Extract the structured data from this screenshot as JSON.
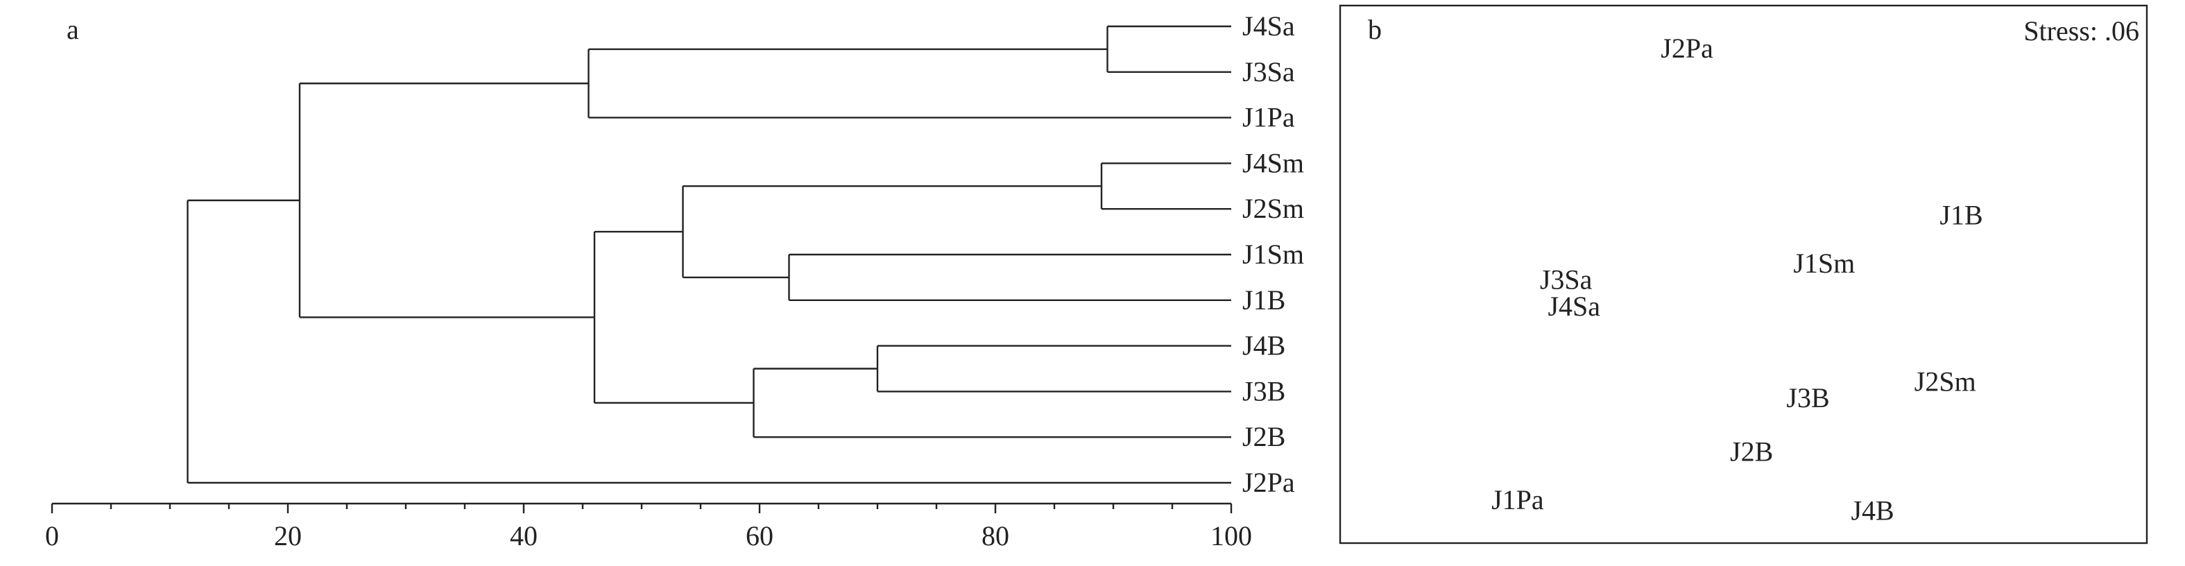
{
  "chart_data": [
    {
      "type": "dendrogram",
      "panel_label": "a",
      "leaves": [
        "J4Sa",
        "J3Sa",
        "J1Pa",
        "J4Sm",
        "J2Sm",
        "J1Sm",
        "J1B",
        "J4B",
        "J3B",
        "J2B",
        "J2Pa"
      ],
      "merges": [
        {
          "a": "J4Sa",
          "b": "J3Sa",
          "similarity": 89.5
        },
        {
          "a": "J4Sm",
          "b": "J2Sm",
          "similarity": 89
        },
        {
          "a": "J1Sm",
          "b": "J1B",
          "similarity": 62.5
        },
        {
          "a": "J4B",
          "b": "J3B",
          "similarity": 70
        },
        {
          "a": "J4Sa+J3Sa",
          "b": "J1Pa",
          "similarity": 45.5
        },
        {
          "a": "J4Sm+J2Sm",
          "b": "J1Sm+J1B",
          "similarity": 53.5
        },
        {
          "a": "J4B+J3B",
          "b": "J2B",
          "similarity": 59.5
        },
        {
          "a": "J4Sm+J2Sm+J1Sm+J1B",
          "b": "J4B+J3B+J2B",
          "similarity": 46
        },
        {
          "a": "J4Sa+J3Sa+J1Pa",
          "b": "J4Sm+J2Sm+J1Sm+J1B+J4B+J3B+J2B",
          "similarity": 21
        },
        {
          "a": "all others",
          "b": "J2Pa",
          "similarity": 11.5
        }
      ],
      "xlim": [
        0,
        100
      ],
      "xticks": [
        0,
        20,
        40,
        60,
        80,
        100
      ]
    },
    {
      "type": "scatter",
      "panel_label": "b",
      "annotation": "Stress: .06",
      "points": [
        {
          "label": "J2Pa",
          "x": 0.43,
          "y": 0.92
        },
        {
          "label": "J1B",
          "x": 0.77,
          "y": 0.61
        },
        {
          "label": "J1Sm",
          "x": 0.6,
          "y": 0.52
        },
        {
          "label": "J3Sa",
          "x": 0.28,
          "y": 0.49
        },
        {
          "label": "J4Sa",
          "x": 0.29,
          "y": 0.44
        },
        {
          "label": "J2Sm",
          "x": 0.75,
          "y": 0.3
        },
        {
          "label": "J3B",
          "x": 0.58,
          "y": 0.27
        },
        {
          "label": "J2B",
          "x": 0.51,
          "y": 0.17
        },
        {
          "label": "J1Pa",
          "x": 0.22,
          "y": 0.08
        },
        {
          "label": "J4B",
          "x": 0.66,
          "y": 0.06
        }
      ]
    }
  ]
}
